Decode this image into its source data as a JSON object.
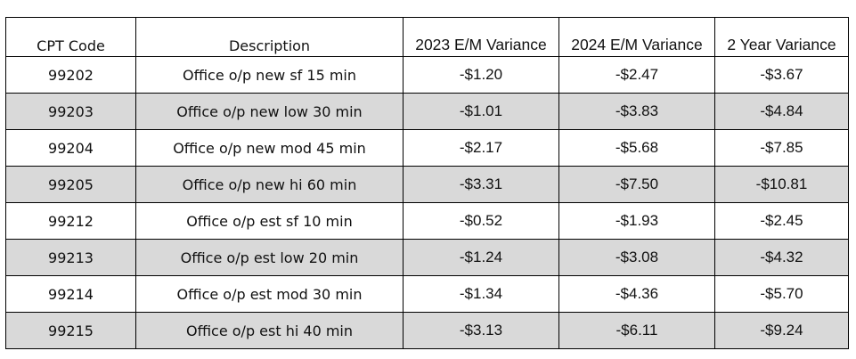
{
  "table": {
    "headers": [
      "CPT Code",
      "Description",
      "2023 E/M Variance",
      "2024 E/M Variance",
      "2 Year Variance"
    ],
    "rows": [
      [
        "99202",
        "Office o/p new sf 15 min",
        "-$1.20",
        "-$2.47",
        "-$3.67"
      ],
      [
        "99203",
        "Office o/p new low 30 min",
        "-$1.01",
        "-$3.83",
        "-$4.84"
      ],
      [
        "99204",
        "Office o/p new mod 45 min",
        "-$2.17",
        "-$5.68",
        "-$7.85"
      ],
      [
        "99205",
        "Office o/p new hi 60 min",
        "-$3.31",
        "-$7.50",
        "-$10.81"
      ],
      [
        "99212",
        "Office o/p est sf 10 min",
        "-$0.52",
        "-$1.93",
        "-$2.45"
      ],
      [
        "99213",
        "Office o/p est low 20 min",
        "-$1.24",
        "-$3.08",
        "-$4.32"
      ],
      [
        "99214",
        "Office o/p est mod 30 min",
        "-$1.34",
        "-$4.36",
        "-$5.70"
      ],
      [
        "99215",
        "Office o/p est hi 40 min",
        "-$3.13",
        "-$6.11",
        "-$9.24"
      ]
    ],
    "shaded_row_color": "#d9d9d9",
    "border_color": "#000000"
  }
}
